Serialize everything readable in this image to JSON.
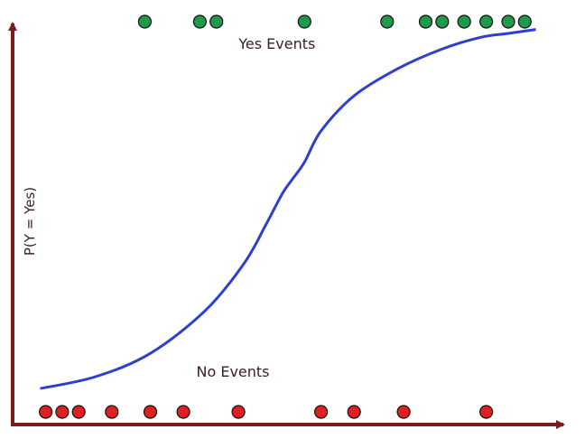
{
  "chart_data": {
    "type": "scatter",
    "title": "",
    "xlabel": "",
    "ylabel": "P(Y = Yes)",
    "xlim": [
      0,
      100
    ],
    "ylim": [
      0,
      1
    ],
    "grid": false,
    "axis_color": "#7b1c1c",
    "annotations": [
      {
        "text": "Yes Events",
        "x": 48,
        "y": 0.93
      },
      {
        "text": "No Events",
        "x": 40,
        "y": 0.09
      }
    ],
    "series": [
      {
        "color": "#1f9a4c",
        "x": [
          24,
          34,
          37,
          53,
          68,
          75,
          78,
          82,
          86,
          90,
          93
        ],
        "y": [
          1,
          1,
          1,
          1,
          1,
          1,
          1,
          1,
          1,
          1,
          1
        ]
      },
      {
        "color": "#e02020",
        "x": [
          6,
          9,
          12,
          18,
          25,
          31,
          41,
          56,
          62,
          71,
          86
        ],
        "y": [
          0,
          0,
          0,
          0,
          0,
          0,
          0,
          0,
          0,
          0,
          0
        ]
      }
    ],
    "curve": {
      "type": "line",
      "color": "#2e3fd0",
      "x": [
        5,
        15,
        25,
        35,
        42,
        46,
        49,
        51,
        53,
        56,
        62,
        70,
        78,
        85,
        90,
        95
      ],
      "y": [
        0.06,
        0.09,
        0.15,
        0.26,
        0.38,
        0.48,
        0.56,
        0.6,
        0.64,
        0.72,
        0.81,
        0.88,
        0.93,
        0.96,
        0.97,
        0.98
      ]
    }
  }
}
